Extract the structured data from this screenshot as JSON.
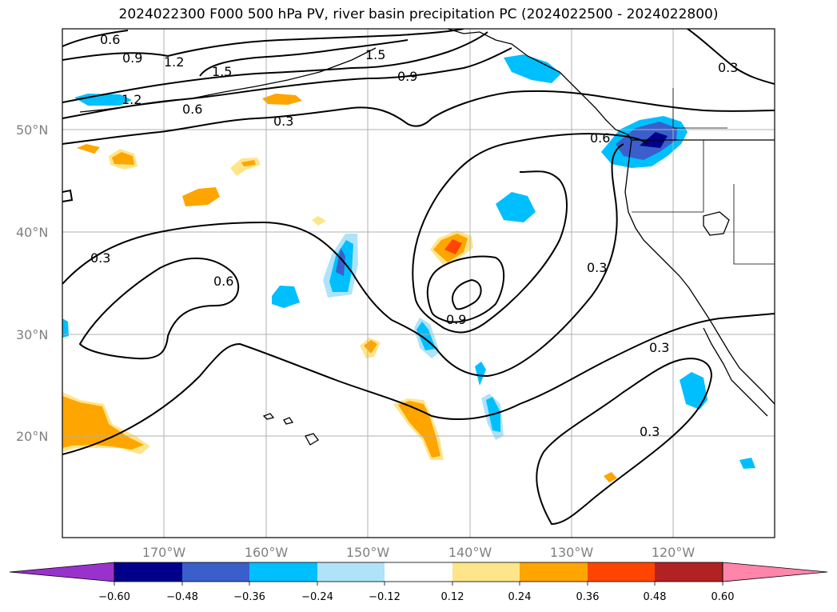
{
  "title": "2024022300 F000 500 hPa PV, river basin precipitation PC (2024022500 - 2024022800)",
  "map": {
    "lat_labels": [
      "50°N",
      "40°N",
      "30°N",
      "20°N"
    ],
    "lon_labels": [
      "170°W",
      "160°W",
      "150°W",
      "140°W",
      "130°W",
      "120°W"
    ],
    "contour_labels": [
      "0.6",
      "0.9",
      "1.2",
      "1.5",
      "1.5",
      "0.9",
      "1.2",
      "0.6",
      "0.3",
      "0.6",
      "0.3",
      "0.6",
      "0.9",
      "0.3",
      "0.3",
      "0.3",
      "0.3"
    ]
  },
  "colorbar": {
    "ticks": [
      "−0.60",
      "−0.48",
      "−0.36",
      "−0.24",
      "−0.12",
      "0.12",
      "0.24",
      "0.36",
      "0.48",
      "0.60"
    ],
    "colors": [
      "#9932cc",
      "#00008b",
      "#3a5fcd",
      "#00bfff",
      "#aee3f9",
      "#ffffff",
      "#ffe58a",
      "#ffa500",
      "#ff4500",
      "#b22222",
      "#ff85aa"
    ]
  }
}
